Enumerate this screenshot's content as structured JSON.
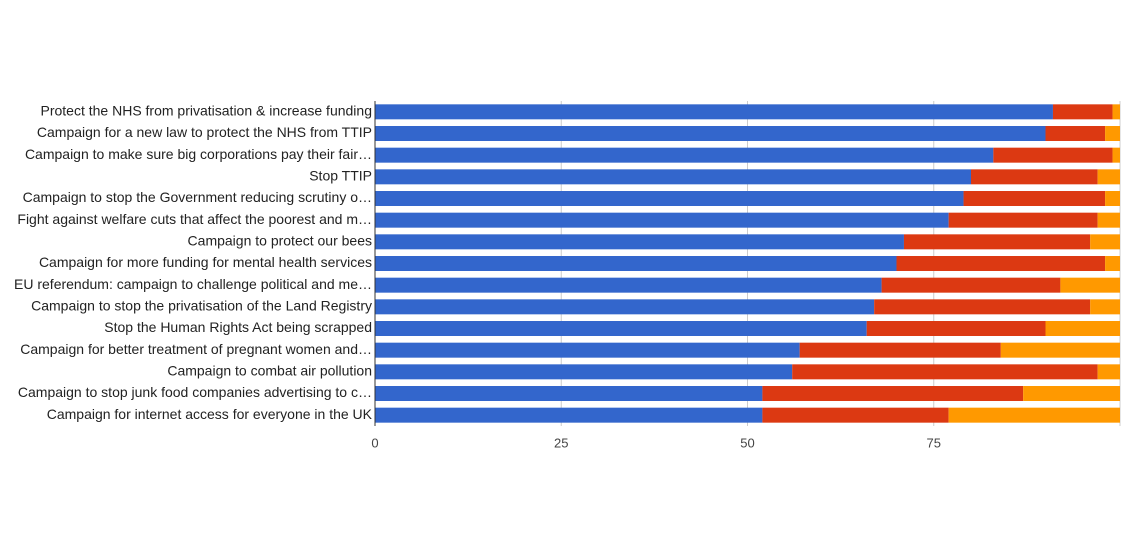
{
  "chart_data": {
    "type": "stacked-bar",
    "categories": [
      "Protect the NHS from privatisation & increase funding",
      "Campaign for a new law to protect the NHS from TTIP",
      "Campaign to make sure big corporations pay their fair…",
      "Stop TTIP",
      "Campaign to stop the Government reducing scrutiny o…",
      "Fight against welfare cuts that affect the poorest and m…",
      "Campaign to protect our bees",
      "Campaign for more funding for mental health services",
      "EU referendum: campaign to challenge political and me…",
      "Campaign to stop the privatisation of the Land Registry",
      "Stop the Human Rights Act being scrapped",
      "Campaign for better treatment of pregnant women and…",
      "Campaign to combat air pollution",
      "Campaign to stop junk food companies advertising to c…",
      "Campaign for internet access for everyone in the UK"
    ],
    "series": [
      {
        "color": "#3366cc",
        "values": [
          91,
          90,
          83,
          80,
          79,
          77,
          71,
          70,
          68,
          67,
          66,
          57,
          56,
          52,
          52
        ]
      },
      {
        "color": "#dc3912",
        "values": [
          8,
          8,
          16,
          17,
          19,
          20,
          25,
          28,
          24,
          29,
          24,
          27,
          41,
          35,
          25
        ]
      },
      {
        "color": "#ff9900",
        "values": [
          1,
          2,
          1,
          3,
          2,
          3,
          4,
          2,
          8,
          4,
          10,
          16,
          3,
          13,
          23
        ]
      }
    ],
    "xlim": [
      0,
      100
    ],
    "xticks": [
      0,
      25,
      50,
      75
    ],
    "grid": true
  }
}
